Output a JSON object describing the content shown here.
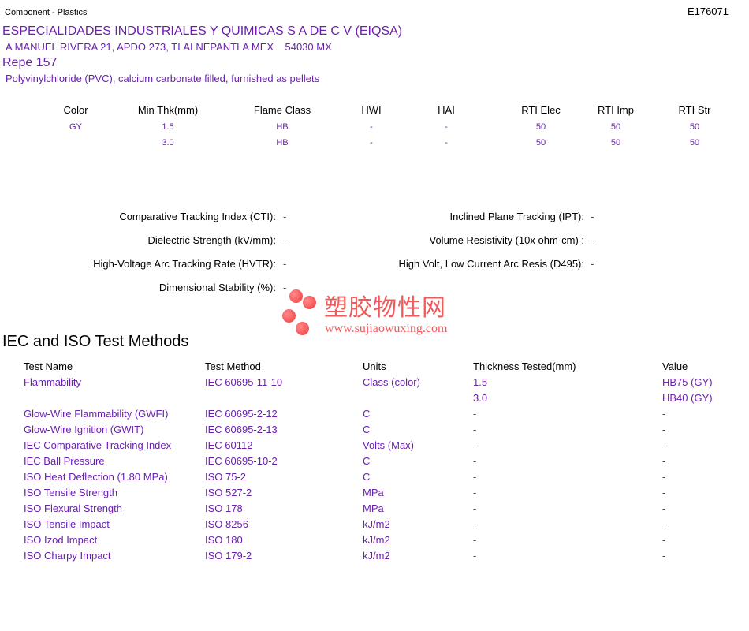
{
  "header": {
    "category": "Component - Plastics",
    "file_no": "E176071"
  },
  "company": {
    "name": "ESPECIALIDADES INDUSTRIALES Y QUIMICAS S A DE C V (EIQSA)",
    "address": "A MANUEL RIVERA 21, APDO 273, TLALNEPANTLA MEX    54030 MX"
  },
  "product": {
    "name": "Repe 157",
    "description": "Polyvinylchloride (PVC), calcium carbonate filled, furnished as pellets"
  },
  "ratings": {
    "headers": [
      "Color",
      "Min Thk(mm)",
      "Flame Class",
      "HWI",
      "HAI",
      "RTI Elec",
      "RTI Imp",
      "RTI Str"
    ],
    "rows": [
      [
        "GY",
        "1.5",
        "HB",
        "-",
        "-",
        "50",
        "50",
        "50"
      ],
      [
        "",
        "3.0",
        "HB",
        "-",
        "-",
        "50",
        "50",
        "50"
      ]
    ]
  },
  "properties": {
    "left": [
      {
        "label": "Comparative Tracking Index (CTI):",
        "value": "-"
      },
      {
        "label": "Dielectric Strength (kV/mm):",
        "value": "-"
      },
      {
        "label": "High-Voltage Arc Tracking Rate (HVTR):",
        "value": "-"
      },
      {
        "label": "Dimensional Stability (%):",
        "value": "-"
      }
    ],
    "right": [
      {
        "label": "Inclined Plane Tracking (IPT):",
        "value": "-"
      },
      {
        "label": "Volume Resistivity (10x ohm-cm) :",
        "value": "-"
      },
      {
        "label": "High Volt, Low Current Arc Resis (D495):",
        "value": "-"
      }
    ]
  },
  "watermark": {
    "cn": "塑胶物性网",
    "url": "www.sujiaowuxing.com"
  },
  "iec": {
    "title": "IEC and ISO Test Methods",
    "headers": [
      "Test Name",
      "Test Method",
      "Units",
      "Thickness Tested(mm)",
      "Value"
    ],
    "rows": [
      [
        "Flammability",
        "IEC 60695-11-10",
        "Class (color)",
        "1.5",
        "HB75 (GY)"
      ],
      [
        "",
        "",
        "",
        "3.0",
        "HB40 (GY)"
      ],
      [
        "Glow-Wire Flammability (GWFI)",
        "IEC 60695-2-12",
        "C",
        "-",
        "-"
      ],
      [
        "Glow-Wire Ignition (GWIT)",
        "IEC 60695-2-13",
        "C",
        "-",
        "-"
      ],
      [
        "IEC Comparative Tracking Index",
        "IEC 60112",
        "Volts (Max)",
        "-",
        "-"
      ],
      [
        "IEC Ball Pressure",
        "IEC 60695-10-2",
        "C",
        "-",
        "-"
      ],
      [
        "ISO Heat Deflection (1.80 MPa)",
        "ISO 75-2",
        "C",
        "-",
        "-"
      ],
      [
        "ISO Tensile Strength",
        "ISO 527-2",
        "MPa",
        "-",
        "-"
      ],
      [
        "ISO Flexural Strength",
        "ISO 178",
        "MPa",
        "-",
        "-"
      ],
      [
        "ISO Tensile Impact",
        "ISO 8256",
        "kJ/m2",
        "-",
        "-"
      ],
      [
        "ISO Izod Impact",
        "ISO 180",
        "kJ/m2",
        "-",
        "-"
      ],
      [
        "ISO Charpy Impact",
        "ISO 179-2",
        "kJ/m2",
        "-",
        "-"
      ]
    ]
  }
}
